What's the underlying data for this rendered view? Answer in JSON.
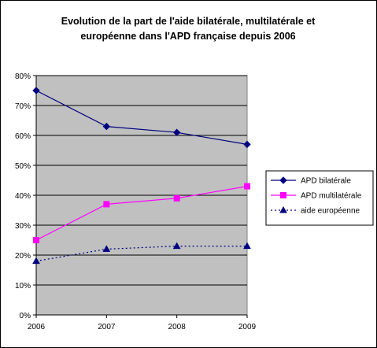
{
  "chart_data": {
    "type": "line",
    "title_lines": [
      "Evolution de la part de l'aide bilatérale, multilatérale et",
      "européenne dans l'APD française depuis 2006"
    ],
    "x": [
      "2006",
      "2007",
      "2008",
      "2009"
    ],
    "ylim": [
      0,
      80
    ],
    "y_ticks": [
      "0%",
      "10%",
      "20%",
      "30%",
      "40%",
      "50%",
      "60%",
      "70%",
      "80%"
    ],
    "y_tick_values": [
      0,
      10,
      20,
      30,
      40,
      50,
      60,
      70,
      80
    ],
    "grid": "horizontal",
    "plot_background": "#c0c0c0",
    "legend_position": "right",
    "series": [
      {
        "name": "APD bilatérale",
        "values": [
          75,
          63,
          61,
          57
        ],
        "color": "#000080",
        "marker": "diamond",
        "dash": "solid"
      },
      {
        "name": "APD multilatérale",
        "values": [
          25,
          37,
          39,
          43
        ],
        "color": "#ff00ff",
        "marker": "square",
        "dash": "solid"
      },
      {
        "name": "aide européenne",
        "values": [
          18,
          22,
          23,
          23
        ],
        "color": "#000080",
        "marker": "triangle",
        "dash": "dotted"
      }
    ]
  }
}
